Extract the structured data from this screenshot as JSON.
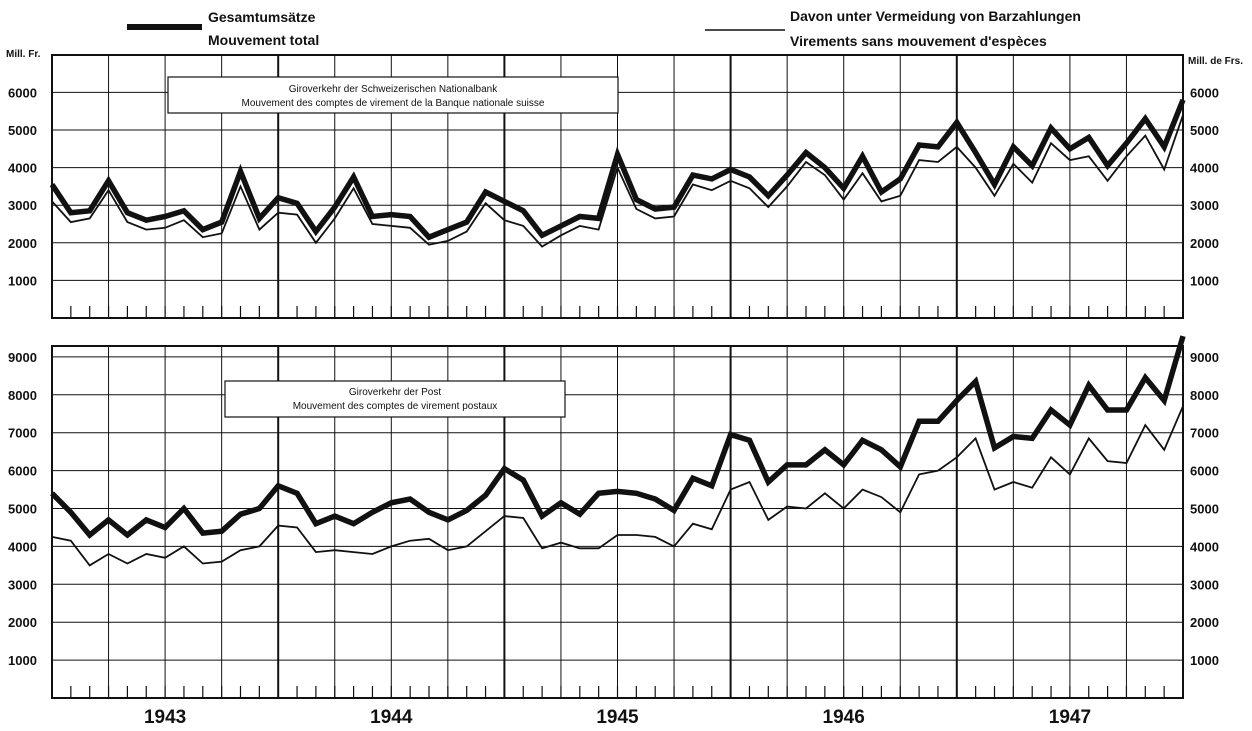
{
  "legend": {
    "total": {
      "label_de": "Gesamtumsätze",
      "label_fr": "Mouvement total"
    },
    "noncash": {
      "label_de": "Davon unter Vermeidung von Barzahlungen",
      "label_fr": "Virements sans mouvement d'espèces"
    }
  },
  "colors": {
    "ink": "#111111",
    "background": "#ffffff"
  },
  "chart_data": [
    {
      "type": "line",
      "title": "Giroverkehr der Schweizerischen Nationalbank",
      "subtitle": "Mouvement des comptes de virement de la Banque nationale suisse",
      "ylabel_left": "Mill. Fr.",
      "ylabel_right": "Mill. de Frs.",
      "ylim": [
        0,
        6500
      ],
      "yticks": [
        1000,
        2000,
        3000,
        4000,
        5000,
        6000
      ],
      "ytick_labels": [
        "1000",
        "2000",
        "3000",
        "4000",
        "5000",
        "6000"
      ],
      "grid": true,
      "x_unit": "month index (1943-01 = 0)",
      "x_ticks": [
        "1943",
        "1944",
        "1945",
        "1946",
        "1947"
      ],
      "series": [
        {
          "name": "Gesamtumsätze / Mouvement total",
          "style": "thick",
          "values": [
            3550,
            2800,
            2850,
            3650,
            2800,
            2600,
            2700,
            2850,
            2350,
            2550,
            3900,
            2650,
            3200,
            3050,
            2300,
            2950,
            3750,
            2700,
            2750,
            2700,
            2150,
            2350,
            2550,
            3350,
            3100,
            2850,
            2200,
            2450,
            2700,
            2650,
            4350,
            3150,
            2900,
            2950,
            3800,
            3700,
            3950,
            3750,
            3250,
            3800,
            4400,
            4000,
            3450,
            4300,
            3350,
            3700,
            4600,
            4550,
            5200,
            4400,
            3550,
            4550,
            4050,
            5050,
            4500,
            4800,
            4050,
            4650,
            5300,
            4550,
            5800
          ]
        },
        {
          "name": "Davon unter Vermeidung von Barzahlungen / Virements sans mouvement d'espèces",
          "style": "thin",
          "values": [
            3100,
            2550,
            2650,
            3400,
            2550,
            2350,
            2400,
            2600,
            2150,
            2250,
            3500,
            2350,
            2800,
            2750,
            2000,
            2650,
            3450,
            2500,
            2450,
            2400,
            1950,
            2050,
            2300,
            3050,
            2600,
            2450,
            1900,
            2200,
            2450,
            2350,
            4000,
            2900,
            2650,
            2700,
            3550,
            3400,
            3650,
            3450,
            2950,
            3500,
            4150,
            3800,
            3150,
            3850,
            3100,
            3250,
            4200,
            4150,
            4550,
            4000,
            3250,
            4100,
            3600,
            4650,
            4200,
            4300,
            3650,
            4300,
            4850,
            3950,
            5400
          ]
        }
      ]
    },
    {
      "type": "line",
      "title": "Giroverkehr der Post",
      "subtitle": "Mouvement des comptes de virement postaux",
      "ylim": [
        0,
        9600
      ],
      "yticks": [
        1000,
        2000,
        3000,
        4000,
        5000,
        6000,
        7000,
        8000,
        9000
      ],
      "ytick_labels": [
        "1000",
        "2000",
        "3000",
        "4000",
        "5000",
        "6000",
        "7000",
        "8000",
        "9000"
      ],
      "grid": true,
      "x_unit": "month index (1943-01 = 0)",
      "x_ticks": [
        "1943",
        "1944",
        "1945",
        "1946",
        "1947"
      ],
      "series": [
        {
          "name": "Gesamtumsätze / Mouvement total",
          "style": "thick",
          "values": [
            5400,
            4900,
            4300,
            4700,
            4300,
            4700,
            4500,
            5000,
            4350,
            4400,
            4850,
            5000,
            5600,
            5400,
            4600,
            4800,
            4600,
            4900,
            5150,
            5250,
            4900,
            4700,
            4950,
            5350,
            6050,
            5750,
            4800,
            5150,
            4850,
            5400,
            5450,
            5400,
            5250,
            4950,
            5800,
            5600,
            6950,
            6800,
            5700,
            6150,
            6150,
            6550,
            6150,
            6800,
            6550,
            6100,
            7300,
            7300,
            7850,
            8350,
            6600,
            6900,
            6850,
            7600,
            7200,
            8250,
            7600,
            7600,
            8450,
            7850,
            9550
          ]
        },
        {
          "name": "Davon unter Vermeidung von Barzahlungen / Virements sans mouvement d'espèces",
          "style": "thin",
          "values": [
            4250,
            4150,
            3500,
            3800,
            3550,
            3800,
            3700,
            4000,
            3550,
            3600,
            3900,
            4000,
            4550,
            4500,
            3850,
            3900,
            3850,
            3800,
            4000,
            4150,
            4200,
            3900,
            4000,
            4400,
            4800,
            4750,
            3950,
            4100,
            3950,
            3950,
            4300,
            4300,
            4250,
            4000,
            4600,
            4450,
            5500,
            5700,
            4700,
            5050,
            5000,
            5400,
            5000,
            5500,
            5300,
            4900,
            5900,
            6000,
            6350,
            6850,
            5500,
            5700,
            5550,
            6350,
            5900,
            6850,
            6250,
            6200,
            7200,
            6550,
            7700
          ]
        }
      ]
    }
  ]
}
